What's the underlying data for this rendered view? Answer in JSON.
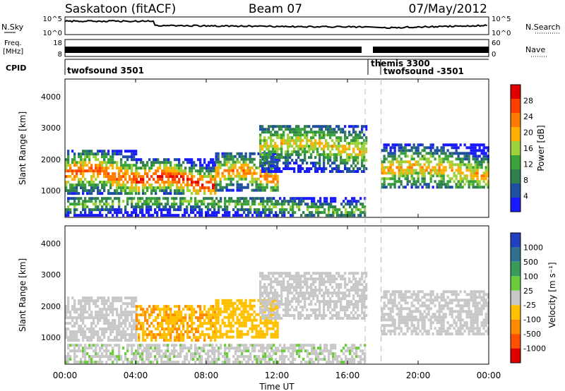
{
  "header": {
    "radar": "Saskatoon (fitACF)",
    "beam": "Beam 07",
    "date": "07/May/2012"
  },
  "sky_panel": {
    "left_label": "N.Sky",
    "right_label": "N.Search",
    "left_ticks": [
      "10^5",
      "10^0"
    ],
    "right_ticks": [
      "10^5",
      "10^0"
    ]
  },
  "freq_panel": {
    "left_label_line1": "Freq.",
    "left_label_line2": "[MHz]",
    "right_label": "Nave",
    "left_ticks": [
      "18",
      "8"
    ],
    "right_ticks": [
      "60",
      "0"
    ]
  },
  "cpid_panel": {
    "label": "CPID",
    "modes": [
      {
        "name": "twofsound 3501",
        "start_hour": 0
      },
      {
        "name": "themis 3300",
        "start_hour": 17.0
      },
      {
        "name": "twofsound -3501",
        "start_hour": 17.9
      }
    ]
  },
  "time_axis": {
    "xlabel": "Time UT",
    "tick_labels": [
      "00:00",
      "04:00",
      "08:00",
      "12:00",
      "16:00",
      "20:00",
      "00:00"
    ],
    "tick_hours": [
      0,
      4,
      8,
      12,
      16,
      20,
      24
    ]
  },
  "power_panel": {
    "ylabel": "Slant Range [km]",
    "y_ticks": [
      "1000",
      "2000",
      "3000",
      "4000"
    ],
    "colorbar_label": "Power [dB]",
    "colorbar_ticks": [
      "4",
      "8",
      "12",
      "16",
      "20",
      "24",
      "28"
    ]
  },
  "velocity_panel": {
    "ylabel": "Slant Range [km]",
    "y_ticks": [
      "1000",
      "2000",
      "3000",
      "4000"
    ],
    "colorbar_label": "Velocity [m s⁻¹]",
    "colorbar_ticks": [
      "1000",
      "500",
      "100",
      "25",
      "-25",
      "-100",
      "-500",
      "-1000"
    ]
  },
  "chart_data": {
    "type": "heatmap",
    "x_unit": "hours UT",
    "xlim": [
      0,
      24
    ],
    "ylim_km": [
      180,
      4600
    ],
    "mode_change_hours": [
      17.0,
      17.9
    ],
    "power_scale_db": [
      0,
      30
    ],
    "power_colors": [
      "#1a1aff",
      "#1f4fa0",
      "#2f7f4f",
      "#3aa23a",
      "#9fd23a",
      "#ffb000",
      "#ff7a00",
      "#ff4000",
      "#e00000"
    ],
    "velocity_scale": [
      -1000,
      1000
    ],
    "velocity_colors": [
      "#2040c0",
      "#2f6f8f",
      "#3a9a5a",
      "#6acc3a",
      "#c8c8c8",
      "#ffc000",
      "#ff8a00",
      "#ff5000",
      "#e00000"
    ],
    "echo_bands": [
      {
        "start_hour": 0.0,
        "end_hour": 4.0,
        "range_km": [
          900,
          2300
        ],
        "peak_range_km": 1500,
        "power_db": 24,
        "velocity_ms": 0
      },
      {
        "start_hour": 4.0,
        "end_hour": 8.5,
        "range_km": [
          900,
          2000
        ],
        "peak_range_km": 1300,
        "power_db": 28,
        "velocity_ms": -300
      },
      {
        "start_hour": 8.5,
        "end_hour": 12.0,
        "range_km": [
          1000,
          2200
        ],
        "peak_range_km": 1500,
        "power_db": 22,
        "velocity_ms": -200
      },
      {
        "start_hour": 11.0,
        "end_hour": 17.0,
        "range_km": [
          1600,
          3100
        ],
        "peak_range_km": 2400,
        "power_db": 18,
        "velocity_ms": 0
      },
      {
        "start_hour": 17.9,
        "end_hour": 24.0,
        "range_km": [
          1100,
          2500
        ],
        "peak_range_km": 1600,
        "power_db": 20,
        "velocity_ms": 0
      },
      {
        "start_hour": 0.0,
        "end_hour": 17.0,
        "range_km": [
          200,
          800
        ],
        "peak_range_km": 500,
        "power_db": 14,
        "velocity_ms": 50
      }
    ]
  }
}
